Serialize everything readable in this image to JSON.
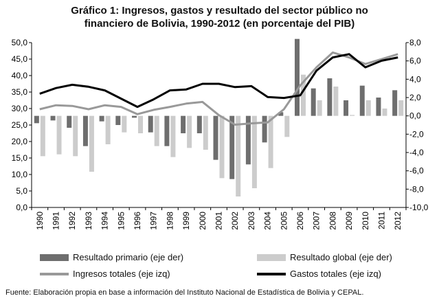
{
  "chart_data": {
    "type": "bar+line",
    "title_line1": "Gráfico 1: Ingresos, gastos y resultado del sector público no",
    "title_line2": "financiero de Bolivia, 1990-2012 (en porcentaje del PIB)",
    "categories": [
      "1990",
      "1991",
      "1992",
      "1993",
      "1994",
      "1995",
      "1996",
      "1997",
      "1998",
      "1999",
      "2000",
      "2001",
      "2002",
      "2003",
      "2004",
      "2005",
      "2006",
      "2007",
      "2008",
      "2009",
      "2010",
      "2011",
      "2012"
    ],
    "left_axis": {
      "min": 0,
      "max": 50,
      "step": 5,
      "tick_labels": [
        "0,0",
        "5,0",
        "10,0",
        "15,0",
        "20,0",
        "25,0",
        "30,0",
        "35,0",
        "40,0",
        "45,0",
        "50,0"
      ]
    },
    "right_axis": {
      "min": -10,
      "max": 8,
      "step": 2,
      "tick_labels": [
        "-10,0",
        "-8,0",
        "-6,0",
        "-4,0",
        "-2,0",
        "0,0",
        "2,0",
        "4,0",
        "6,0",
        "8,0"
      ]
    },
    "grid": false,
    "legend_position": "bottom",
    "series": [
      {
        "name": "Resultado primario (eje der)",
        "kind": "bar",
        "axis": "right",
        "color": "#6e6e6e",
        "values": [
          -0.8,
          -0.5,
          -1.3,
          -3.3,
          -0.6,
          -1.0,
          -0.2,
          -1.8,
          -3.3,
          -1.9,
          -1.9,
          -4.8,
          -6.9,
          -5.3,
          -2.9,
          0.4,
          8.4,
          3.0,
          4.1,
          1.7,
          3.3,
          2.0,
          2.8
        ]
      },
      {
        "name": "Resultado global (eje der)",
        "kind": "bar",
        "axis": "right",
        "color": "#cccccc",
        "values": [
          -4.4,
          -4.2,
          -4.4,
          -6.1,
          -3.1,
          -1.8,
          -1.9,
          -3.3,
          -4.5,
          -3.5,
          -3.7,
          -6.8,
          -8.8,
          -7.9,
          -5.7,
          -2.3,
          4.5,
          1.7,
          3.2,
          0.1,
          1.7,
          0.8,
          1.7
        ]
      },
      {
        "name": "Ingresos totales (eje izq)",
        "kind": "line",
        "axis": "left",
        "color": "#999999",
        "values": [
          29.8,
          31.0,
          30.8,
          29.8,
          31.0,
          30.5,
          28.3,
          29.6,
          30.5,
          31.5,
          32.0,
          28.0,
          25.1,
          25.5,
          25.8,
          29.8,
          37.0,
          42.5,
          47.0,
          45.5,
          43.5,
          45.0,
          46.5
        ]
      },
      {
        "name": "Gastos totales (eje izq)",
        "kind": "line",
        "axis": "left",
        "color": "#000000",
        "values": [
          34.5,
          36.2,
          37.2,
          36.6,
          35.5,
          33.0,
          30.5,
          32.8,
          35.5,
          35.8,
          37.5,
          37.5,
          36.5,
          36.8,
          33.5,
          33.2,
          34.0,
          41.5,
          45.5,
          46.5,
          42.5,
          44.5,
          45.5
        ]
      }
    ]
  },
  "source_note": "Fuente: Elaboración propia en base a información del Instituto Nacional de Estadística de Bolivia y CEPAL."
}
